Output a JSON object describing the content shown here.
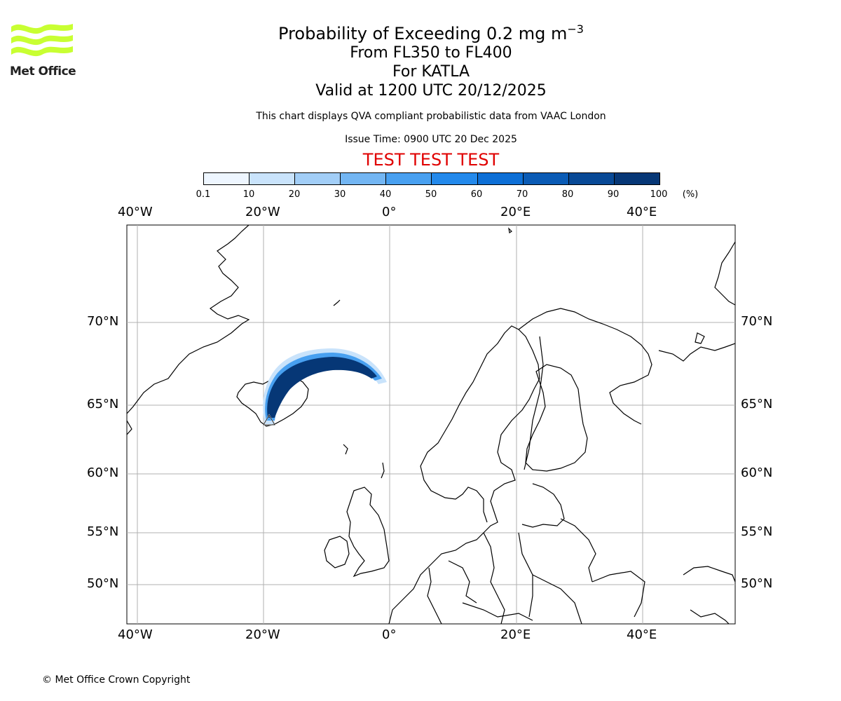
{
  "logo": {
    "text": "Met Office",
    "brand_color": "#c8ff32"
  },
  "header": {
    "title_prefix": "Probability of Exceeding 0.2 mg m",
    "title_exponent": "−3",
    "range": "From FL350 to FL400",
    "volcano": "For KATLA",
    "valid": "Valid at 1200 UTC 20/12/2025",
    "note": "This chart displays QVA compliant probabilistic data from VAAC London",
    "issue": "Issue Time: 0900 UTC 20 Dec 2025",
    "test_banner": "TEST TEST TEST",
    "test_color": "#e00000"
  },
  "colorbar": {
    "ticks": [
      "0.1",
      "10",
      "20",
      "30",
      "40",
      "50",
      "60",
      "70",
      "80",
      "90",
      "100"
    ],
    "unit": "(%)",
    "colors": [
      "#eef6ff",
      "#c9e3fb",
      "#a2cef7",
      "#73b6f3",
      "#48a0f0",
      "#2389eb",
      "#0d6fd6",
      "#0a5bb5",
      "#084996",
      "#063776"
    ]
  },
  "axes": {
    "top_lon": [
      "40°W",
      "20°W",
      "0°",
      "20°E",
      "40°E"
    ],
    "bottom_lon": [
      "40°W",
      "20°W",
      "0°",
      "20°E",
      "40°E"
    ],
    "left_lat": [
      "70°N",
      "65°N",
      "60°N",
      "55°N",
      "50°N"
    ],
    "right_lat": [
      "70°N",
      "65°N",
      "60°N",
      "55°N",
      "50°N"
    ]
  },
  "footer": {
    "copyright": "© Met Office Crown Copyright"
  }
}
